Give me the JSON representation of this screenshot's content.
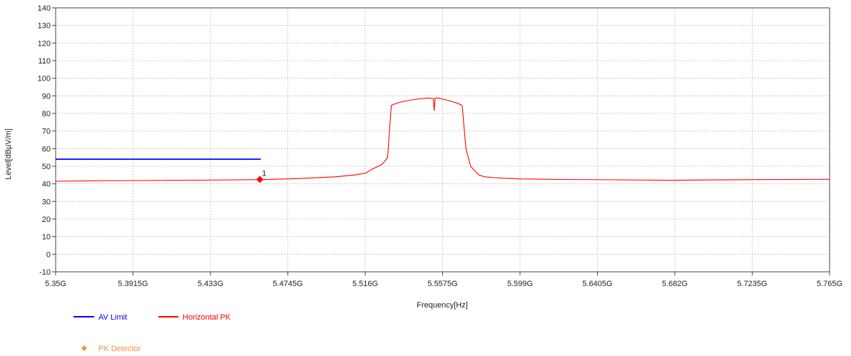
{
  "chart_data": {
    "type": "line",
    "title": "",
    "xlabel": "Frequency[Hz]",
    "ylabel": "Level[dBµV/m]",
    "x_unit": "GHz",
    "xlim": [
      5.35,
      5.765
    ],
    "ylim": [
      -10,
      140
    ],
    "y_ticks": [
      -10,
      0,
      10,
      20,
      30,
      40,
      50,
      60,
      70,
      80,
      90,
      100,
      110,
      120,
      130,
      140
    ],
    "x_ticks": [
      {
        "value": 5.35,
        "label": "5.35G"
      },
      {
        "value": 5.3915,
        "label": "5.3915G"
      },
      {
        "value": 5.433,
        "label": "5.433G"
      },
      {
        "value": 5.4745,
        "label": "5.4745G"
      },
      {
        "value": 5.516,
        "label": "5.516G"
      },
      {
        "value": 5.5575,
        "label": "5.5575G"
      },
      {
        "value": 5.599,
        "label": "5.599G"
      },
      {
        "value": 5.6405,
        "label": "5.6405G"
      },
      {
        "value": 5.682,
        "label": "5.682G"
      },
      {
        "value": 5.7235,
        "label": "5.7235G"
      },
      {
        "value": 5.765,
        "label": "5.765G"
      }
    ],
    "grid": true,
    "series": [
      {
        "name": "AV Limit",
        "color": "#0000ff",
        "x": [
          5.35,
          5.46
        ],
        "y": [
          54,
          54
        ]
      },
      {
        "name": "Horizontal PK",
        "color": "#ff0000",
        "x": [
          5.35,
          5.37,
          5.4,
          5.43,
          5.46,
          5.48,
          5.5,
          5.51,
          5.516,
          5.52,
          5.525,
          5.528,
          5.529,
          5.53,
          5.532,
          5.535,
          5.54,
          5.545,
          5.55,
          5.5525,
          5.553,
          5.5535,
          5.555,
          5.56,
          5.565,
          5.5675,
          5.568,
          5.57,
          5.5725,
          5.575,
          5.577,
          5.58,
          5.585,
          5.59,
          5.6,
          5.62,
          5.65,
          5.68,
          5.7,
          5.73,
          5.765
        ],
        "y": [
          41.5,
          41.7,
          41.9,
          42.1,
          42.4,
          43.0,
          44.0,
          45.0,
          46.0,
          48.5,
          51.0,
          55.0,
          70.0,
          84.5,
          85.5,
          86.5,
          87.5,
          88.3,
          88.8,
          88.5,
          81.5,
          88.7,
          88.8,
          87.5,
          86.0,
          84.8,
          84.0,
          60.0,
          50.0,
          47.0,
          45.0,
          44.0,
          43.5,
          43.2,
          42.8,
          42.5,
          42.3,
          42.0,
          42.2,
          42.4,
          42.6
        ]
      }
    ],
    "markers": [
      {
        "name": "PK Detector",
        "color": "#ff0000",
        "x": 5.4595,
        "y": 42.5,
        "label": "1"
      }
    ]
  },
  "legend": {
    "items": [
      {
        "label": "AV Limit",
        "color": "#0000ff"
      },
      {
        "label": "Horizontal PK",
        "color": "#ff0000"
      }
    ],
    "detector": {
      "label": "PK Detector",
      "color": "#ff8c42"
    }
  }
}
